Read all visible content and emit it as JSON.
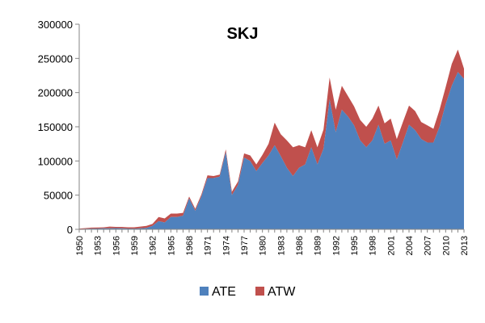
{
  "chart_data": {
    "type": "area",
    "stacked": true,
    "title": "SKJ",
    "xlabel": "",
    "ylabel": "",
    "ylim": [
      0,
      300000
    ],
    "yticks": [
      0,
      50000,
      100000,
      150000,
      200000,
      250000,
      300000
    ],
    "yticklabels": [
      "0",
      "50000",
      "100000",
      "150000",
      "200000",
      "250000",
      "300000"
    ],
    "xlim": [
      1950,
      2013
    ],
    "xticks": [
      1950,
      1953,
      1956,
      1959,
      1962,
      1965,
      1968,
      1971,
      1974,
      1977,
      1980,
      1983,
      1986,
      1989,
      1992,
      1995,
      1998,
      2001,
      2004,
      2007,
      2010,
      2013
    ],
    "xticklabels": [
      "1950",
      "1953",
      "1956",
      "1959",
      "1962",
      "1965",
      "1968",
      "1971",
      "1974",
      "1977",
      "1980",
      "1983",
      "1986",
      "1989",
      "1992",
      "1995",
      "1998",
      "2001",
      "2004",
      "2007",
      "2010",
      "2013"
    ],
    "legend_position": "bottom",
    "grid": false,
    "x": [
      1950,
      1951,
      1952,
      1953,
      1954,
      1955,
      1956,
      1957,
      1958,
      1959,
      1960,
      1961,
      1962,
      1963,
      1964,
      1965,
      1966,
      1967,
      1968,
      1969,
      1970,
      1971,
      1972,
      1973,
      1974,
      1975,
      1976,
      1977,
      1978,
      1979,
      1980,
      1981,
      1982,
      1983,
      1984,
      1985,
      1986,
      1987,
      1988,
      1989,
      1990,
      1991,
      1992,
      1993,
      1994,
      1995,
      1996,
      1997,
      1998,
      1999,
      2000,
      2001,
      2002,
      2003,
      2004,
      2005,
      2006,
      2007,
      2008,
      2009,
      2010,
      2011,
      2012,
      2013
    ],
    "series": [
      {
        "name": "ATE",
        "color": "#4f81bd",
        "values": [
          500,
          800,
          1000,
          1200,
          1500,
          1500,
          1700,
          1500,
          1200,
          1000,
          1500,
          2000,
          5000,
          12000,
          10000,
          18000,
          18000,
          20000,
          45000,
          27000,
          48000,
          75000,
          75000,
          77000,
          113000,
          50000,
          65000,
          105000,
          100000,
          85000,
          97000,
          108000,
          123000,
          107000,
          90000,
          78000,
          90000,
          95000,
          120000,
          95000,
          118000,
          190000,
          142000,
          175000,
          165000,
          152000,
          130000,
          120000,
          130000,
          153000,
          125000,
          130000,
          102000,
          127000,
          153000,
          145000,
          132000,
          127000,
          127000,
          150000,
          183000,
          210000,
          230000,
          220000
        ]
      },
      {
        "name": "ATW",
        "color": "#c0504d",
        "values": [
          500,
          1000,
          1500,
          1500,
          1500,
          2500,
          1800,
          2000,
          1800,
          2000,
          2500,
          3000,
          3000,
          6000,
          6000,
          5000,
          5000,
          4000,
          3000,
          3000,
          3000,
          4000,
          3000,
          3000,
          4000,
          5000,
          5000,
          6000,
          8000,
          10000,
          12000,
          17000,
          33000,
          32000,
          40000,
          42000,
          33000,
          25000,
          25000,
          25000,
          28000,
          32000,
          33000,
          35000,
          30000,
          28000,
          30000,
          30000,
          32000,
          28000,
          30000,
          32000,
          30000,
          30000,
          28000,
          28000,
          25000,
          25000,
          20000,
          25000,
          25000,
          32000,
          33000,
          15000
        ]
      }
    ]
  }
}
